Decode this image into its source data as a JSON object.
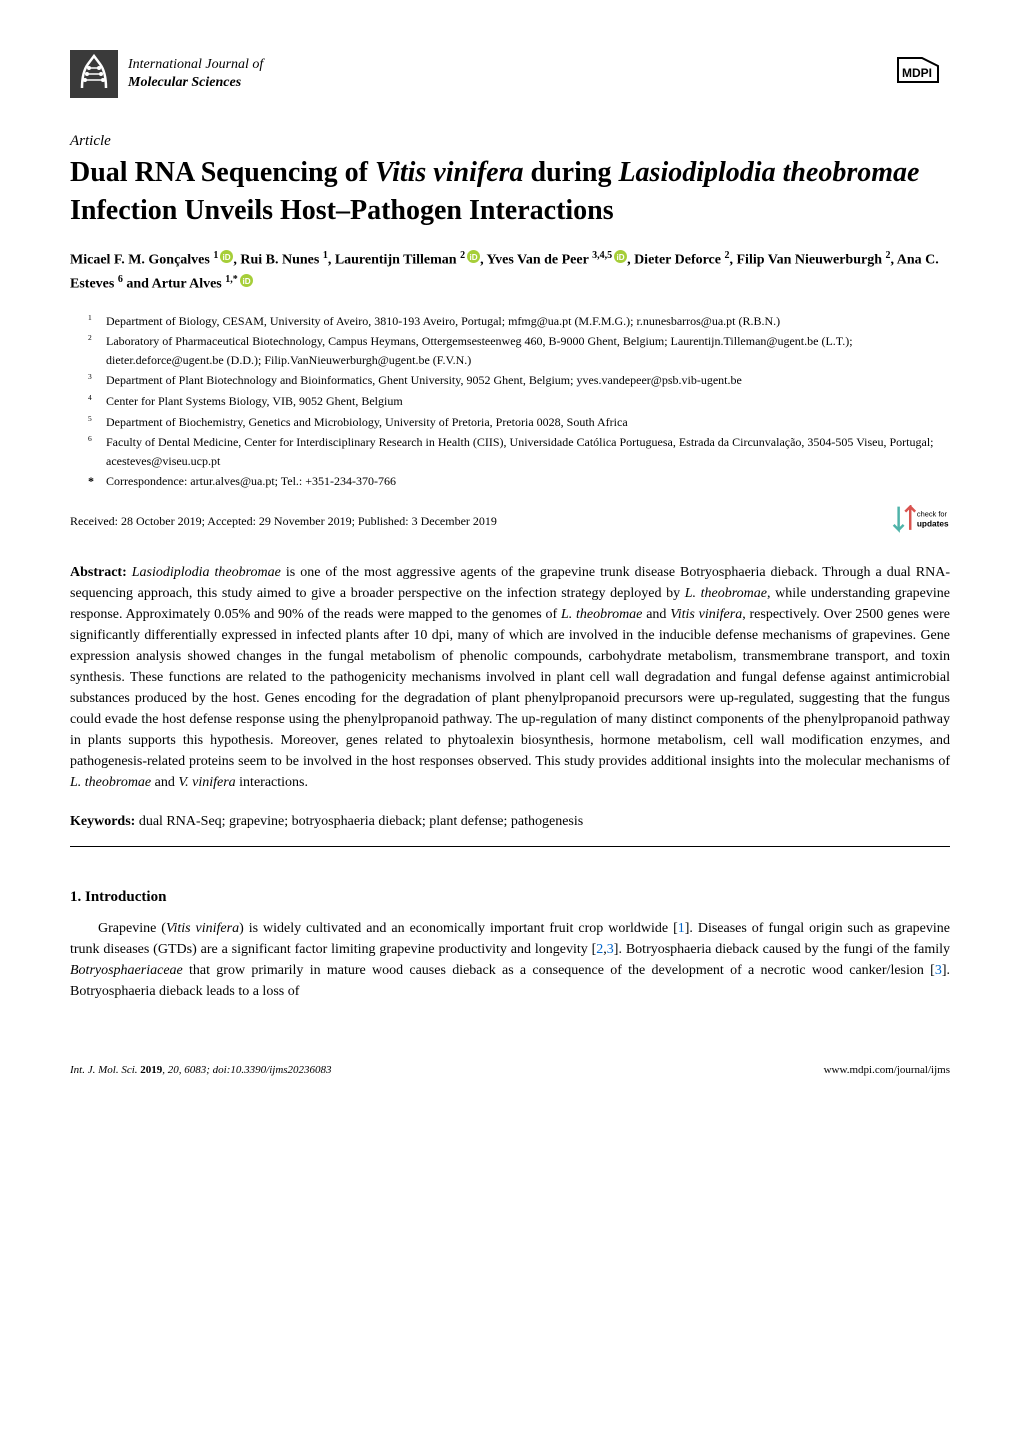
{
  "journal": {
    "name_line1": "International Journal of",
    "name_line2": "Molecular Sciences",
    "logo_bg_color": "#3a3a3a",
    "logo_fg_color": "#ffffff"
  },
  "mdpi_label": "MDPI",
  "article_type": "Article",
  "title": "Dual RNA Sequencing of Vitis vinifera during Lasiodiplodia theobromae Infection Unveils Host–Pathogen Interactions",
  "title_parts": {
    "pre1": "Dual RNA Sequencing of ",
    "it1": "Vitis vinifera",
    "mid1": " during ",
    "it2": "Lasiodiplodia theobromae",
    "post": " Infection Unveils Host–Pathogen Interactions"
  },
  "authors": [
    {
      "name": "Micael F. M. Gonçalves",
      "affil": "1",
      "orcid": true
    },
    {
      "name": "Rui B. Nunes",
      "affil": "1",
      "orcid": false
    },
    {
      "name": "Laurentijn Tilleman",
      "affil": "2",
      "orcid": true
    },
    {
      "name": "Yves Van de Peer",
      "affil": "3,4,5",
      "orcid": true
    },
    {
      "name": "Dieter Deforce",
      "affil": "2",
      "orcid": false
    },
    {
      "name": "Filip Van Nieuwerburgh",
      "affil": "2",
      "orcid": false
    },
    {
      "name": "Ana C. Esteves",
      "affil": "6",
      "orcid": false
    },
    {
      "name": "Artur Alves",
      "affil": "1,*",
      "orcid": true
    }
  ],
  "affiliations": [
    {
      "num": "1",
      "text": "Department of Biology, CESAM, University of Aveiro, 3810-193 Aveiro, Portugal; mfmg@ua.pt (M.F.M.G.); r.nunesbarros@ua.pt (R.B.N.)"
    },
    {
      "num": "2",
      "text": "Laboratory of Pharmaceutical Biotechnology, Campus Heymans, Ottergemsesteenweg 460, B-9000 Ghent, Belgium; Laurentijn.Tilleman@ugent.be (L.T.); dieter.deforce@ugent.be (D.D.); Filip.VanNieuwerburgh@ugent.be (F.V.N.)"
    },
    {
      "num": "3",
      "text": "Department of Plant Biotechnology and Bioinformatics, Ghent University, 9052 Ghent, Belgium; yves.vandepeer@psb.vib-ugent.be"
    },
    {
      "num": "4",
      "text": "Center for Plant Systems Biology, VIB, 9052 Ghent, Belgium"
    },
    {
      "num": "5",
      "text": "Department of Biochemistry, Genetics and Microbiology, University of Pretoria, Pretoria 0028, South Africa"
    },
    {
      "num": "6",
      "text": "Faculty of Dental Medicine, Center for Interdisciplinary Research in Health (CIIS), Universidade Católica Portuguesa, Estrada da Circunvalação, 3504-505 Viseu, Portugal; acesteves@viseu.ucp.pt"
    }
  ],
  "correspondence": {
    "symbol": "*",
    "text": "Correspondence: artur.alves@ua.pt; Tel.: +351-234-370-766"
  },
  "dates": "Received: 28 October 2019; Accepted: 29 November 2019; Published: 3 December 2019",
  "check_updates_label": "check for updates",
  "abstract_label": "Abstract:",
  "abstract_text": "Lasiodiplodia theobromae is one of the most aggressive agents of the grapevine trunk disease Botryosphaeria dieback. Through a dual RNA-sequencing approach, this study aimed to give a broader perspective on the infection strategy deployed by L. theobromae, while understanding grapevine response. Approximately 0.05% and 90% of the reads were mapped to the genomes of L. theobromae and Vitis vinifera, respectively. Over 2500 genes were significantly differentially expressed in infected plants after 10 dpi, many of which are involved in the inducible defense mechanisms of grapevines. Gene expression analysis showed changes in the fungal metabolism of phenolic compounds, carbohydrate metabolism, transmembrane transport, and toxin synthesis. These functions are related to the pathogenicity mechanisms involved in plant cell wall degradation and fungal defense against antimicrobial substances produced by the host. Genes encoding for the degradation of plant phenylpropanoid precursors were up-regulated, suggesting that the fungus could evade the host defense response using the phenylpropanoid pathway. The up-regulation of many distinct components of the phenylpropanoid pathway in plants supports this hypothesis. Moreover, genes related to phytoalexin biosynthesis, hormone metabolism, cell wall modification enzymes, and pathogenesis-related proteins seem to be involved in the host responses observed. This study provides additional insights into the molecular mechanisms of L. theobromae and V. vinifera interactions.",
  "keywords_label": "Keywords:",
  "keywords_text": "dual RNA-Seq; grapevine; botryosphaeria dieback; plant defense; pathogenesis",
  "section_heading": "1. Introduction",
  "intro_para": "Grapevine (Vitis vinifera) is widely cultivated and an economically important fruit crop worldwide [1]. Diseases of fungal origin such as grapevine trunk diseases (GTDs) are a significant factor limiting grapevine productivity and longevity [2,3]. Botryosphaeria dieback caused by the fungi of the family Botryosphaeriaceae that grow primarily in mature wood causes dieback as a consequence of the development of a necrotic wood canker/lesion [3]. Botryosphaeria dieback leads to a loss of",
  "footer": {
    "left_italic": "Int. J. Mol. Sci.",
    "left_bold": "2019",
    "left_rest": ", 20, 6083; doi:10.3390/ijms20236083",
    "right": "www.mdpi.com/journal/ijms"
  },
  "colors": {
    "orcid_green": "#a6ce39",
    "link_blue": "#0066cc",
    "check_updates_cyan": "#00b5e2",
    "check_updates_teal": "#4fb3a9",
    "check_updates_red": "#d9534f",
    "check_updates_orange": "#f0ad4e",
    "text_color": "#000000",
    "bg_color": "#ffffff"
  }
}
